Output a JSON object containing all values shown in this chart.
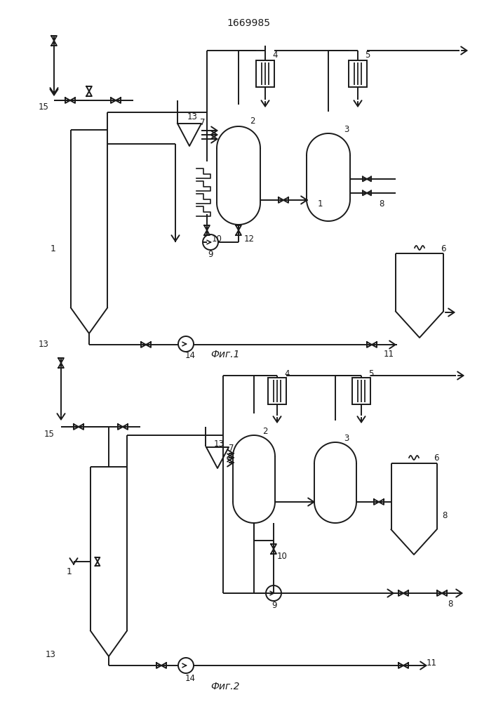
{
  "title": "1669985",
  "fig1_label": "Фиг.1",
  "fig2_label": "Фиг.2",
  "line_color": "#1a1a1a",
  "bg_color": "#ffffff",
  "lw": 1.4
}
